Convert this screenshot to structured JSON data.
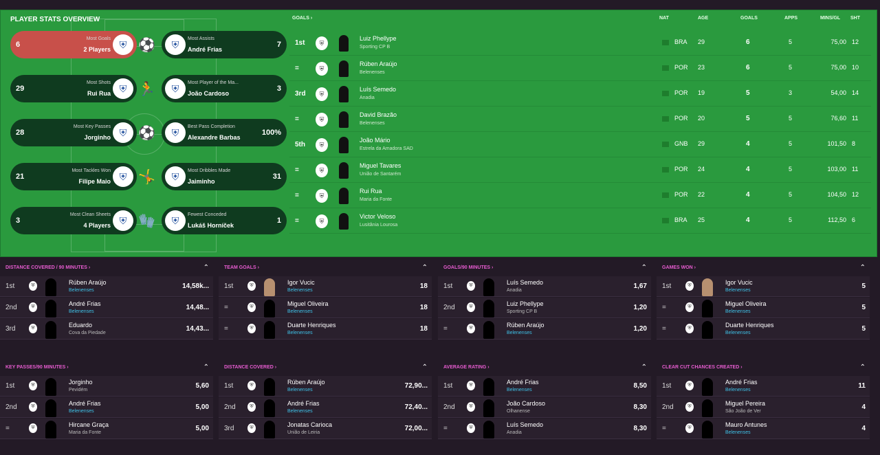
{
  "pso": {
    "title": "PLAYER STATS OVERVIEW",
    "pairs": [
      {
        "lv": "6",
        "llbl": "Most Goals",
        "lnm": "2 Players",
        "rlbl": "Most Assists",
        "rnm": "André Frias",
        "rv": "7",
        "icon": "kick-icon"
      },
      {
        "lv": "29",
        "llbl": "Most Shots",
        "lnm": "Rui Rua",
        "rlbl": "Most Player of the Ma...",
        "rnm": "João Cardoso",
        "rv": "3",
        "icon": "run-icon"
      },
      {
        "lv": "28",
        "llbl": "Most Key Passes",
        "lnm": "Jorginho",
        "rlbl": "Best Pass Completion",
        "rnm": "Alexandre Barbas",
        "rv": "100%",
        "icon": "pass-icon"
      },
      {
        "lv": "21",
        "llbl": "Most Tackles Won",
        "lnm": "Filipe Maio",
        "rlbl": "Most Dribbles Made",
        "rnm": "Jaiminho",
        "rv": "31",
        "icon": "tackle-icon"
      },
      {
        "lv": "3",
        "llbl": "Most Clean Sheets",
        "lnm": "4 Players",
        "rlbl": "Fewest Conceded",
        "rnm": "Lukáš Horníček",
        "rv": "1",
        "icon": "dive-icon"
      }
    ]
  },
  "goals": {
    "title": "GOALS ›",
    "headers": {
      "nat": "NAT",
      "age": "AGE",
      "goals": "GOALS",
      "apps": "APPS",
      "mins": "MINS/GL",
      "sht": "SHT"
    },
    "rows": [
      {
        "rk": "1st",
        "name": "Luiz Phellype",
        "club": "Sporting CP B",
        "nat": "BRA",
        "age": "29",
        "g": "6",
        "apps": "5",
        "mins": "75,00",
        "sht": "12"
      },
      {
        "rk": "=",
        "name": "Rúben Araújo",
        "club": "Belenenses",
        "nat": "POR",
        "age": "23",
        "g": "6",
        "apps": "5",
        "mins": "75,00",
        "sht": "10"
      },
      {
        "rk": "3rd",
        "name": "Luís Semedo",
        "club": "Anadia",
        "nat": "POR",
        "age": "19",
        "g": "5",
        "apps": "3",
        "mins": "54,00",
        "sht": "14"
      },
      {
        "rk": "=",
        "name": "David Brazão",
        "club": "Belenenses",
        "nat": "POR",
        "age": "20",
        "g": "5",
        "apps": "5",
        "mins": "76,60",
        "sht": "11"
      },
      {
        "rk": "5th",
        "name": "João Mário",
        "club": "Estrela da Amadora SAD",
        "nat": "GNB",
        "age": "29",
        "g": "4",
        "apps": "5",
        "mins": "101,50",
        "sht": "8"
      },
      {
        "rk": "=",
        "name": "Miguel Tavares",
        "club": "União de Santarém",
        "nat": "POR",
        "age": "24",
        "g": "4",
        "apps": "5",
        "mins": "103,00",
        "sht": "11"
      },
      {
        "rk": "=",
        "name": "Rui Rua",
        "club": "Maria da Fonte",
        "nat": "POR",
        "age": "22",
        "g": "4",
        "apps": "5",
        "mins": "104,50",
        "sht": "12"
      },
      {
        "rk": "=",
        "name": "Victor Veloso",
        "club": "Lusitânia Lourosa",
        "nat": "BRA",
        "age": "25",
        "g": "4",
        "apps": "5",
        "mins": "112,50",
        "sht": "6"
      }
    ]
  },
  "cards": [
    {
      "title": "DISTANCE COVERED / 90 MINUTES ›",
      "rows": [
        [
          "1st",
          "Rúben Araújo",
          "Belenenses",
          "14,58k..."
        ],
        [
          "2nd",
          "André Frias",
          "Belenenses",
          "14,48..."
        ],
        [
          "3rd",
          "Eduardo",
          "Cova da Piedade",
          "14,43..."
        ]
      ]
    },
    {
      "title": "TEAM GOALS ›",
      "rows": [
        [
          "1st",
          "Igor Vucic",
          "Belenenses",
          "18"
        ],
        [
          "=",
          "Miguel Oliveira",
          "Belenenses",
          "18"
        ],
        [
          "=",
          "Duarte Henriques",
          "Belenenses",
          "18"
        ]
      ]
    },
    {
      "title": "GOALS/90 MINUTES ›",
      "rows": [
        [
          "1st",
          "Luís Semedo",
          "Anadia",
          "1,67"
        ],
        [
          "2nd",
          "Luiz Phellype",
          "Sporting CP B",
          "1,20"
        ],
        [
          "=",
          "Rúben Araújo",
          "Belenenses",
          "1,20"
        ]
      ]
    },
    {
      "title": "GAMES WON ›",
      "rows": [
        [
          "1st",
          "Igor Vucic",
          "Belenenses",
          "5"
        ],
        [
          "=",
          "Miguel Oliveira",
          "Belenenses",
          "5"
        ],
        [
          "=",
          "Duarte Henriques",
          "Belenenses",
          "5"
        ]
      ]
    },
    {
      "title": "KEY PASSES/90 MINUTES ›",
      "rows": [
        [
          "1st",
          "Jorginho",
          "Pevidém",
          "5,60"
        ],
        [
          "2nd",
          "André Frias",
          "Belenenses",
          "5,00"
        ],
        [
          "=",
          "Hircane Graça",
          "Maria da Fonte",
          "5,00"
        ]
      ]
    },
    {
      "title": "DISTANCE COVERED ›",
      "rows": [
        [
          "1st",
          "Rúben Araújo",
          "Belenenses",
          "72,90..."
        ],
        [
          "2nd",
          "André Frias",
          "Belenenses",
          "72,40..."
        ],
        [
          "3rd",
          "Jonatas Carioca",
          "União de Leiria",
          "72,00..."
        ]
      ]
    },
    {
      "title": "AVERAGE RATING ›",
      "rows": [
        [
          "1st",
          "André Frias",
          "Belenenses",
          "8,50"
        ],
        [
          "2nd",
          "João Cardoso",
          "Olhanense",
          "8,30"
        ],
        [
          "=",
          "Luís Semedo",
          "Anadia",
          "8,30"
        ]
      ]
    },
    {
      "title": "CLEAR CUT CHANCES CREATED ›",
      "rows": [
        [
          "1st",
          "André Frias",
          "Belenenses",
          "11"
        ],
        [
          "2nd",
          "Miguel Pereira",
          "São João de Ver",
          "4"
        ],
        [
          "=",
          "Mauro Antunes",
          "Belenenses",
          "4"
        ]
      ]
    }
  ]
}
